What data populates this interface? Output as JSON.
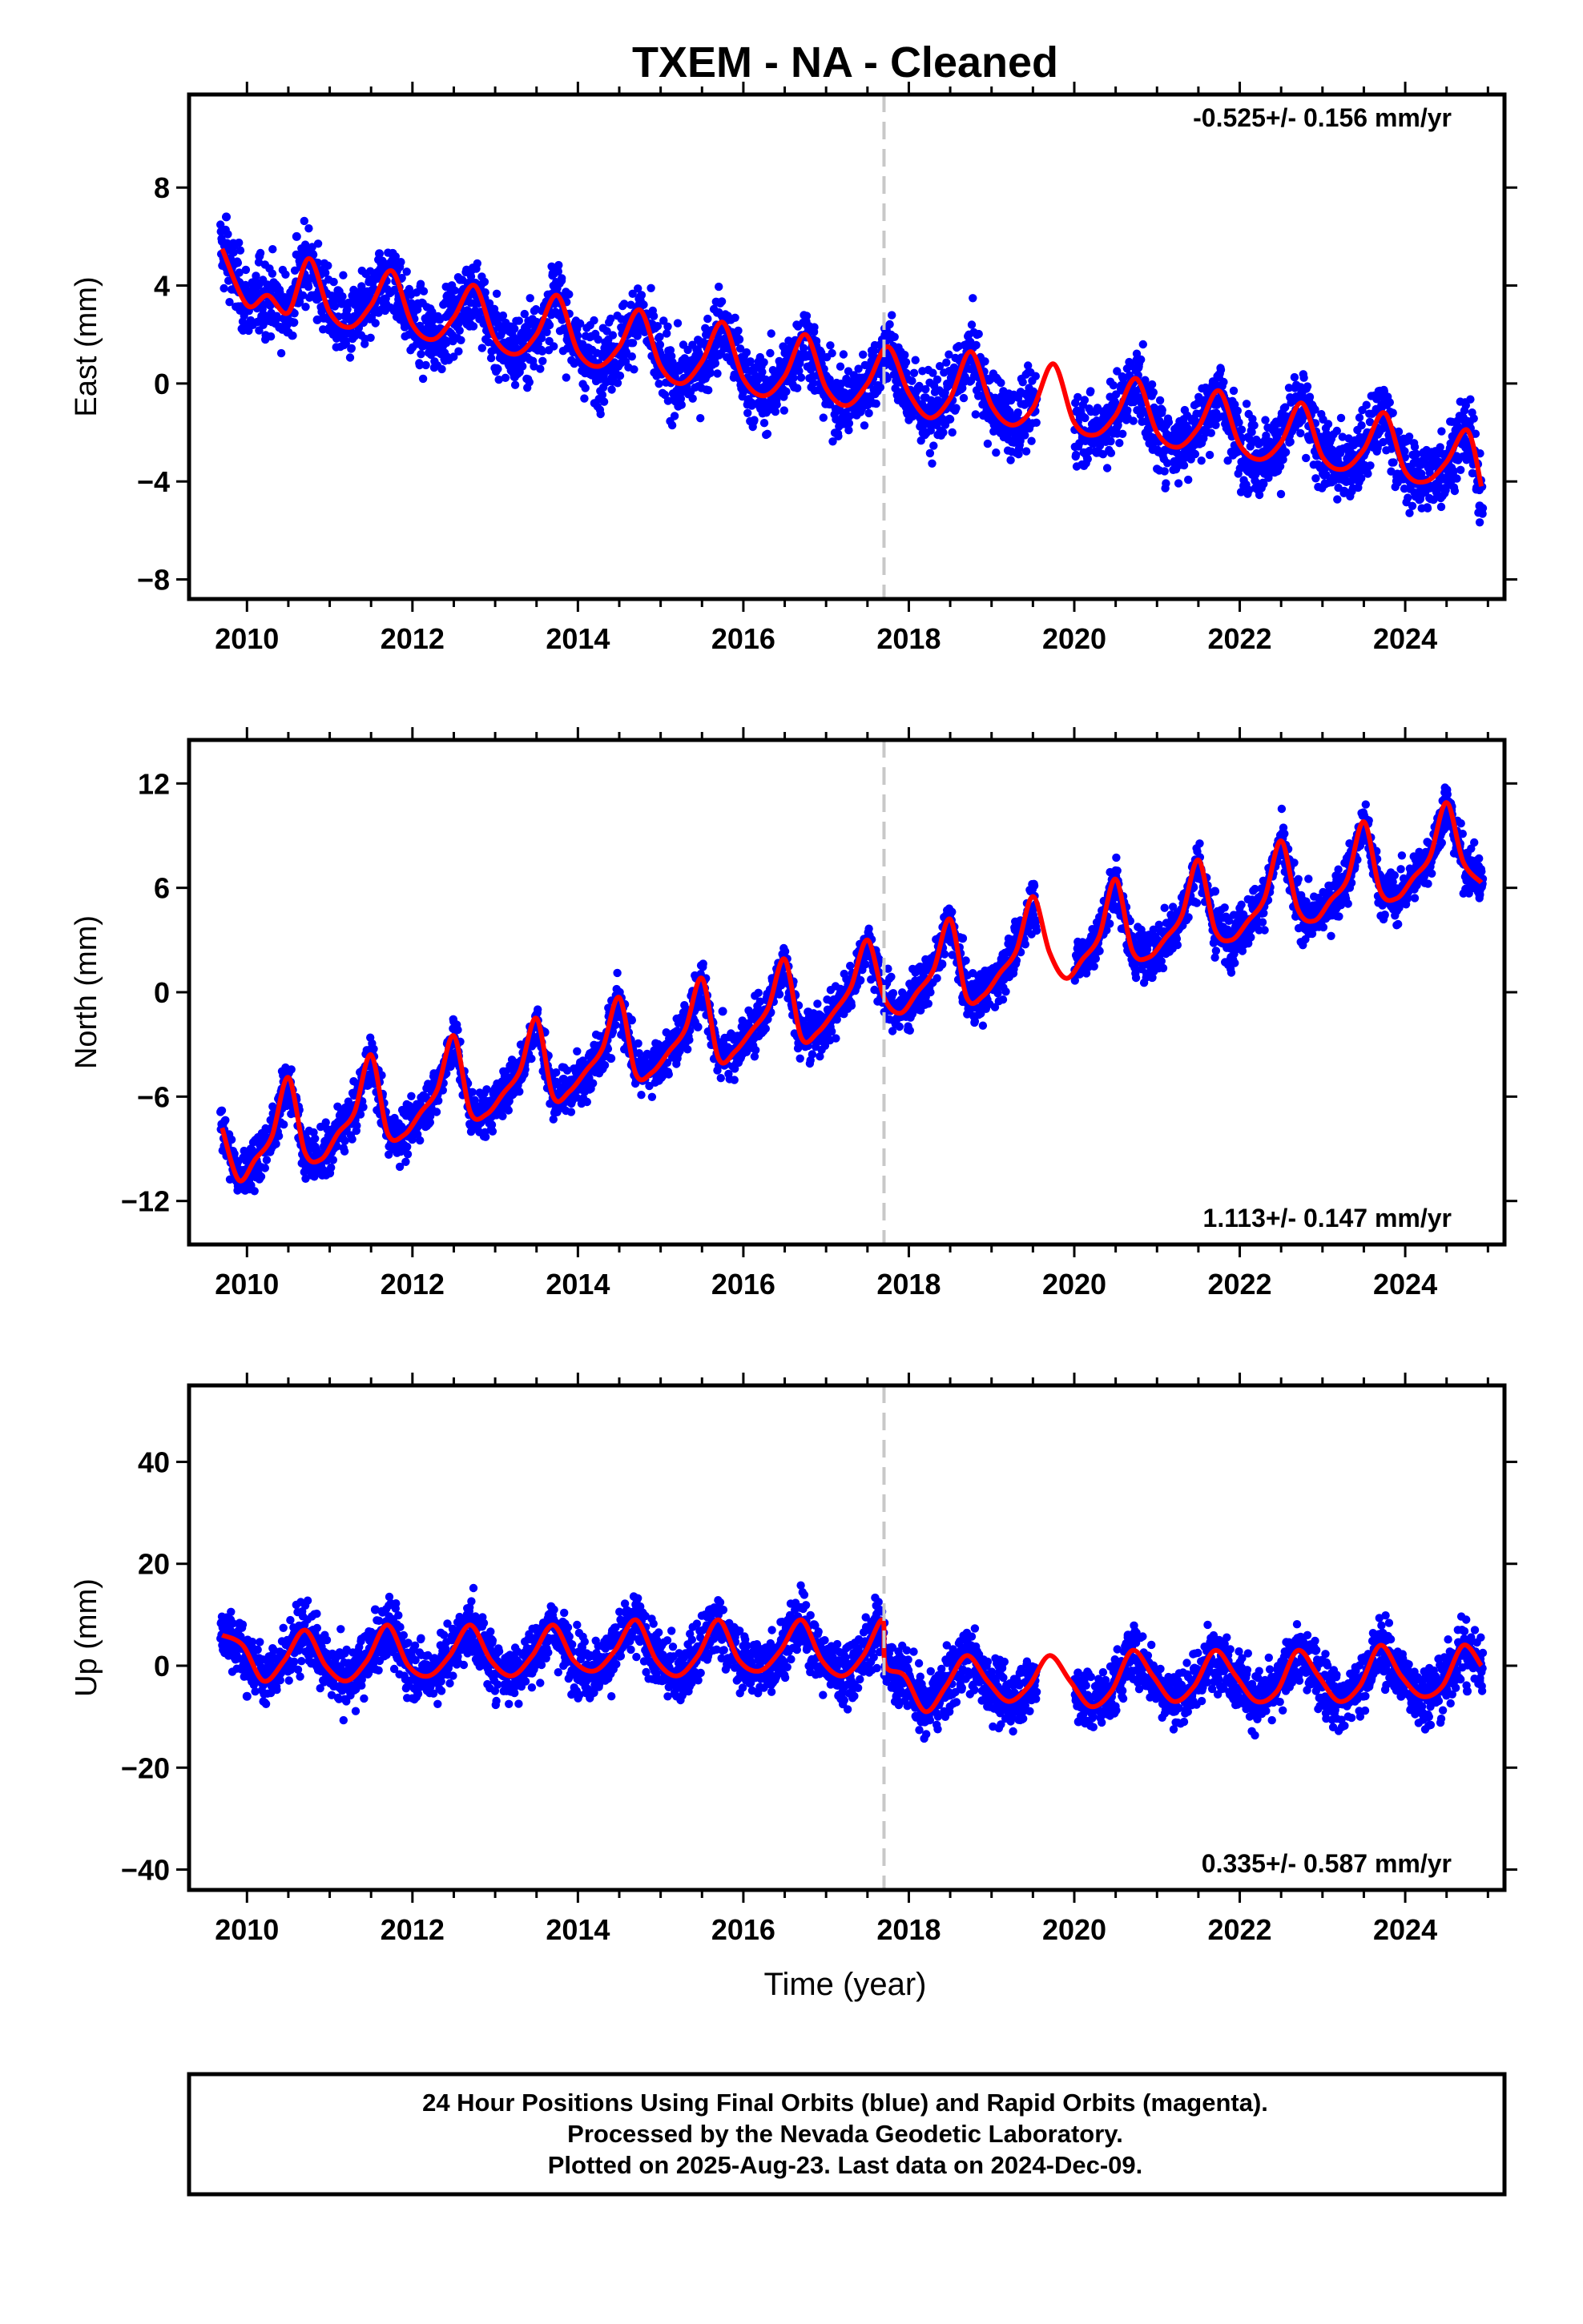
{
  "title": "TXEM  - NA - Cleaned",
  "xlabel": "Time (year)",
  "x_ticks": [
    2010,
    2012,
    2014,
    2016,
    2018,
    2020,
    2022,
    2024
  ],
  "colors": {
    "points": "#0000ff",
    "model": "#ff0000",
    "marker": "#c8c8c8",
    "frame": "#000000"
  },
  "notes": {
    "line1": "24 Hour Positions Using Final Orbits (blue) and Rapid Orbits (magenta).",
    "line2": "Processed by the Nevada Geodetic Laboratory.",
    "line3": "Plotted on 2025-Aug-23. Last data on 2024-Dec-09."
  },
  "chart_data": [
    {
      "type": "scatter",
      "component": "East",
      "ylabel": "East (mm)",
      "rate_text": "-0.525+/- 0.156 mm/yr",
      "rate_position": "top-right",
      "xlim": [
        2009.3,
        2025.2
      ],
      "ylim": [
        -8.8,
        11.8
      ],
      "y_ticks": [
        -8,
        -4,
        0,
        4,
        8
      ],
      "marker_line_x": 2017.7,
      "series": [
        {
          "role": "model",
          "x": [
            2009.7,
            2010.0,
            2010.25,
            2010.5,
            2010.75,
            2011.0,
            2011.25,
            2011.5,
            2011.75,
            2012.0,
            2012.25,
            2012.5,
            2012.75,
            2013.0,
            2013.25,
            2013.5,
            2013.75,
            2014.0,
            2014.25,
            2014.5,
            2014.75,
            2015.0,
            2015.25,
            2015.5,
            2015.75,
            2016.0,
            2016.25,
            2016.5,
            2016.75,
            2017.0,
            2017.25,
            2017.5,
            2017.75,
            2018.0,
            2018.25,
            2018.5,
            2018.75,
            2019.0,
            2019.25,
            2019.5,
            2019.75,
            2020.0,
            2020.25,
            2020.5,
            2020.75,
            2021.0,
            2021.25,
            2021.5,
            2021.75,
            2022.0,
            2022.25,
            2022.5,
            2022.75,
            2023.0,
            2023.25,
            2023.5,
            2023.75,
            2024.0,
            2024.25,
            2024.5,
            2024.75,
            2024.92
          ],
          "y": [
            5.5,
            3.2,
            3.6,
            2.9,
            5.1,
            2.9,
            2.3,
            3.2,
            4.6,
            2.4,
            1.8,
            2.7,
            4.0,
            1.8,
            1.2,
            2.0,
            3.6,
            1.3,
            0.7,
            1.5,
            3.0,
            0.7,
            0.0,
            0.9,
            2.5,
            0.2,
            -0.5,
            0.3,
            2.0,
            -0.2,
            -0.9,
            0.0,
            1.5,
            -0.4,
            -1.4,
            -0.6,
            1.3,
            -0.9,
            -1.7,
            -1.0,
            0.8,
            -1.6,
            -2.1,
            -1.3,
            0.2,
            -2.0,
            -2.6,
            -1.8,
            -0.3,
            -2.5,
            -3.1,
            -2.4,
            -0.8,
            -3.0,
            -3.5,
            -2.7,
            -1.2,
            -3.6,
            -4.0,
            -3.2,
            -1.9,
            -4.2
          ]
        },
        {
          "role": "observations",
          "x": [
            2009.75,
            2009.9,
            2010.15,
            2010.4,
            2010.6,
            2010.85,
            2011.1,
            2011.35,
            2011.6,
            2011.9,
            2012.1,
            2012.4,
            2012.7,
            2012.95,
            2013.2,
            2013.5,
            2013.8,
            2014.05,
            2014.3,
            2014.6,
            2014.9,
            2015.15,
            2015.4,
            2015.7,
            2015.95,
            2016.2,
            2016.45,
            2016.75,
            2017.0,
            2017.3,
            2017.55,
            2017.8,
            2018.1,
            2018.35,
            2018.65,
            2018.9,
            2019.2,
            2020.1,
            2020.4,
            2020.7,
            2020.95,
            2021.3,
            2021.6,
            2021.9,
            2022.15,
            2022.45,
            2022.75,
            2023.05,
            2023.3,
            2023.6,
            2023.9,
            2024.15,
            2024.45,
            2024.7,
            2024.9
          ],
          "y": [
            6.8,
            4.1,
            5.2,
            3.4,
            6.0,
            2.6,
            3.8,
            2.9,
            5.3,
            3.1,
            2.0,
            3.3,
            4.6,
            2.2,
            1.6,
            2.5,
            4.2,
            0.9,
            1.1,
            2.0,
            2.4,
            0.4,
            0.6,
            2.9,
            1.8,
            -0.9,
            0.8,
            1.1,
            -0.6,
            -0.4,
            0.9,
            0.7,
            -1.1,
            -0.7,
            0.6,
            -1.3,
            -1.5,
            -2.2,
            -1.0,
            -0.4,
            -2.7,
            -1.9,
            -1.1,
            -2.8,
            -1.7,
            -2.2,
            -1.5,
            -3.4,
            -2.6,
            -2.0,
            -3.8,
            -3.2,
            -3.9,
            -1.4,
            -5.0
          ]
        }
      ]
    },
    {
      "type": "scatter",
      "component": "North",
      "ylabel": "North (mm)",
      "rate_text": "1.113+/- 0.147 mm/yr",
      "rate_position": "bottom-right",
      "xlim": [
        2009.3,
        2025.2
      ],
      "ylim": [
        -14.5,
        14.5
      ],
      "y_ticks": [
        -12,
        -6,
        0,
        6,
        12
      ],
      "marker_line_x": 2017.7,
      "series": [
        {
          "role": "model",
          "x": [
            2009.7,
            2009.9,
            2010.1,
            2010.3,
            2010.5,
            2010.7,
            2010.9,
            2011.1,
            2011.3,
            2011.5,
            2011.7,
            2011.9,
            2012.1,
            2012.3,
            2012.5,
            2012.7,
            2012.9,
            2013.1,
            2013.3,
            2013.5,
            2013.7,
            2013.9,
            2014.1,
            2014.3,
            2014.5,
            2014.7,
            2014.9,
            2015.1,
            2015.3,
            2015.5,
            2015.7,
            2015.9,
            2016.1,
            2016.3,
            2016.5,
            2016.7,
            2016.9,
            2017.1,
            2017.3,
            2017.5,
            2017.7,
            2017.9,
            2018.1,
            2018.3,
            2018.5,
            2018.7,
            2018.9,
            2019.1,
            2019.3,
            2019.5,
            2019.7,
            2019.9,
            2020.1,
            2020.3,
            2020.5,
            2020.7,
            2020.9,
            2021.1,
            2021.3,
            2021.5,
            2021.7,
            2021.9,
            2022.1,
            2022.3,
            2022.5,
            2022.7,
            2022.9,
            2023.1,
            2023.3,
            2023.5,
            2023.7,
            2023.9,
            2024.1,
            2024.3,
            2024.5,
            2024.7,
            2024.92
          ],
          "y": [
            -7.8,
            -10.8,
            -9.6,
            -8.3,
            -4.9,
            -9.2,
            -9.6,
            -8.1,
            -6.9,
            -3.6,
            -8.1,
            -8.2,
            -6.9,
            -5.6,
            -2.5,
            -6.9,
            -7.0,
            -5.8,
            -4.5,
            -1.5,
            -6.0,
            -5.7,
            -4.5,
            -3.2,
            -0.3,
            -4.7,
            -4.6,
            -3.4,
            -2.1,
            0.8,
            -3.8,
            -3.4,
            -2.2,
            -0.9,
            1.9,
            -2.6,
            -2.3,
            -1.1,
            0.3,
            3.0,
            -0.3,
            -1.2,
            0.0,
            1.3,
            4.2,
            -0.3,
            -0.2,
            1.1,
            2.4,
            5.5,
            2.3,
            0.8,
            1.9,
            3.2,
            6.5,
            2.4,
            2.0,
            3.1,
            4.4,
            7.6,
            3.6,
            3.0,
            4.1,
            5.4,
            8.7,
            4.8,
            4.1,
            5.3,
            6.5,
            9.8,
            5.8,
            5.4,
            6.6,
            7.8,
            10.9,
            7.5,
            6.3
          ]
        },
        {
          "role": "observations",
          "x": [
            2009.75,
            2009.95,
            2010.2,
            2010.45,
            2010.75,
            2011.0,
            2011.25,
            2011.5,
            2011.8,
            2012.05,
            2012.3,
            2012.55,
            2012.85,
            2013.1,
            2013.35,
            2013.6,
            2013.9,
            2014.15,
            2014.4,
            2014.65,
            2014.95,
            2015.2,
            2015.45,
            2015.75,
            2016.0,
            2016.25,
            2016.55,
            2016.8,
            2017.05,
            2017.35,
            2017.6,
            2017.85,
            2018.1,
            2018.4,
            2018.65,
            2018.95,
            2019.25,
            2020.05,
            2020.35,
            2020.6,
            2020.85,
            2021.15,
            2021.45,
            2021.7,
            2022.0,
            2022.25,
            2022.55,
            2022.8,
            2023.1,
            2023.35,
            2023.65,
            2023.95,
            2024.2,
            2024.5,
            2024.75,
            2024.9
          ],
          "y": [
            -8.9,
            -11.3,
            -9.1,
            -6.2,
            -8.7,
            -10.4,
            -7.4,
            -4.1,
            -7.5,
            -7.8,
            -5.9,
            -3.4,
            -6.5,
            -6.7,
            -4.7,
            -2.3,
            -5.4,
            -5.2,
            -3.8,
            -1.6,
            -4.0,
            -3.8,
            -2.0,
            -1.1,
            -2.9,
            -1.7,
            0.9,
            -1.9,
            -2.0,
            0.1,
            2.4,
            -0.9,
            -0.4,
            1.6,
            3.1,
            -0.6,
            1.4,
            2.6,
            3.5,
            5.1,
            2.4,
            3.3,
            5.2,
            5.8,
            3.6,
            5.0,
            7.4,
            5.2,
            5.0,
            6.9,
            8.1,
            5.9,
            7.2,
            9.6,
            8.0,
            5.6
          ]
        }
      ]
    },
    {
      "type": "scatter",
      "component": "Up",
      "ylabel": "Up (mm)",
      "rate_text": "0.335+/- 0.587 mm/yr",
      "rate_position": "bottom-right",
      "xlim": [
        2009.3,
        2025.2
      ],
      "ylim": [
        -44,
        55
      ],
      "y_ticks": [
        -40,
        -20,
        0,
        20,
        40
      ],
      "marker_line_x": 2017.7,
      "series": [
        {
          "role": "model",
          "x": [
            2009.7,
            2009.95,
            2010.2,
            2010.45,
            2010.7,
            2010.95,
            2011.2,
            2011.45,
            2011.7,
            2011.95,
            2012.2,
            2012.45,
            2012.7,
            2012.95,
            2013.2,
            2013.45,
            2013.7,
            2013.95,
            2014.2,
            2014.45,
            2014.7,
            2014.95,
            2015.2,
            2015.45,
            2015.7,
            2015.95,
            2016.2,
            2016.45,
            2016.7,
            2016.95,
            2017.2,
            2017.45,
            2017.68,
            2017.72,
            2017.95,
            2018.2,
            2018.45,
            2018.7,
            2018.95,
            2019.2,
            2019.45,
            2019.7,
            2019.95,
            2020.2,
            2020.45,
            2020.7,
            2020.95,
            2021.2,
            2021.45,
            2021.7,
            2021.95,
            2022.2,
            2022.45,
            2022.7,
            2022.95,
            2023.2,
            2023.45,
            2023.7,
            2023.95,
            2024.2,
            2024.45,
            2024.7,
            2024.92
          ],
          "y": [
            6,
            4,
            -3,
            1,
            7,
            0,
            -3,
            1,
            8,
            0,
            -2,
            2,
            8,
            1,
            -2,
            2,
            8,
            1,
            -1,
            3,
            9,
            1,
            -2,
            2,
            9,
            1,
            -1,
            3,
            9,
            1,
            -2,
            2,
            9,
            0,
            -2,
            -9,
            -4,
            2,
            -3,
            -7,
            -4,
            2,
            -3,
            -8,
            -5,
            3,
            -2,
            -7,
            -4,
            3,
            -2,
            -7,
            -5,
            3,
            -2,
            -7,
            -4,
            4,
            -2,
            -6,
            -4,
            4,
            0
          ]
        },
        {
          "role": "observations",
          "x": [
            2009.8,
            2010.0,
            2010.3,
            2010.55,
            2010.8,
            2011.05,
            2011.3,
            2011.55,
            2011.8,
            2012.05,
            2012.3,
            2012.6,
            2012.85,
            2013.1,
            2013.4,
            2013.65,
            2013.9,
            2014.15,
            2014.45,
            2014.7,
            2014.95,
            2015.2,
            2015.5,
            2015.75,
            2016.0,
            2016.3,
            2016.55,
            2016.8,
            2017.05,
            2017.35,
            2017.6,
            2017.85,
            2018.15,
            2018.4,
            2018.7,
            2018.95,
            2019.25,
            2020.05,
            2020.35,
            2020.65,
            2020.9,
            2021.2,
            2021.45,
            2021.75,
            2022.05,
            2022.3,
            2022.6,
            2022.85,
            2023.1,
            2023.4,
            2023.65,
            2023.95,
            2024.2,
            2024.5,
            2024.75,
            2024.9
          ],
          "y": [
            9,
            -6,
            -4,
            5,
            7,
            -4,
            -2,
            11,
            6,
            -3,
            -1,
            9,
            4,
            -2,
            2,
            10,
            3,
            -1,
            6,
            12,
            2,
            -3,
            4,
            8,
            -1,
            -2,
            7,
            6,
            -2,
            1,
            5,
            -6,
            -11,
            -3,
            5,
            -8,
            -10,
            -11,
            -4,
            6,
            -4,
            -9,
            -1,
            5,
            -7,
            -6,
            4,
            -3,
            -6,
            -1,
            6,
            -6,
            -8,
            1,
            -5,
            -3
          ]
        }
      ]
    }
  ]
}
